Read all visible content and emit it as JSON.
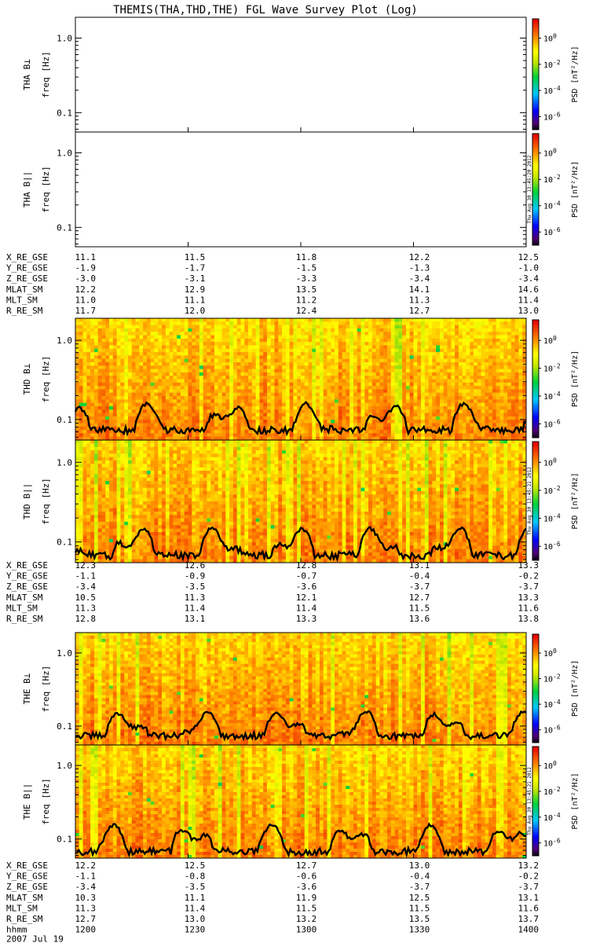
{
  "chart_data": {
    "type": "heatmap",
    "title": "THEMIS(THA,THD,THE) FGL Wave Survey Plot (Log)",
    "freq_axis_label": "freq [Hz]",
    "yscale": "log",
    "ylim_hz": [
      0.055,
      1.9
    ],
    "yticks": [
      {
        "value": 1.0,
        "label": "1.0"
      },
      {
        "value": 0.1,
        "label": "0.1"
      }
    ],
    "colorbar": {
      "label": "PSD [nT²/Hz]",
      "scale": "log",
      "range": [
        1e-07,
        30
      ],
      "ticks": [
        {
          "value": 1,
          "base": "10",
          "exp": "0"
        },
        {
          "value": 0.01,
          "base": "10",
          "exp": "-2"
        },
        {
          "value": 0.0001,
          "base": "10",
          "exp": "-4"
        },
        {
          "value": 1e-06,
          "base": "10",
          "exp": "-6"
        }
      ]
    },
    "stamp": "Thu Aug 30 13:45:21 2012",
    "stamp_first": "Thu Aug 30 13:45:20 2012",
    "time_axis": {
      "label_hhmm": "hhmm",
      "ticks": [
        "1200",
        "1230",
        "1300",
        "1330",
        "1400"
      ],
      "date": "2007 Jul 19"
    },
    "panels": [
      {
        "label": "THA B⊥",
        "probe": "THA",
        "has_data": false,
        "noise_level": 0.12
      },
      {
        "label": "THA B||",
        "probe": "THA",
        "has_data": false,
        "noise_level": 0.12
      },
      {
        "label": "THD B⊥",
        "probe": "THD",
        "has_data": true,
        "noise_level": 0.12
      },
      {
        "label": "THD B||",
        "probe": "THD",
        "has_data": true,
        "noise_level": 0.11
      },
      {
        "label": "THE B⊥",
        "probe": "THE",
        "has_data": true,
        "noise_level": 0.12
      },
      {
        "label": "THE B||",
        "probe": "THE",
        "has_data": true,
        "noise_level": 0.11
      }
    ],
    "ephemeris": [
      {
        "probe": "THA",
        "rows": [
          {
            "name": "X_RE_GSE",
            "values": [
              "11.1",
              "11.5",
              "11.8",
              "12.2",
              "12.5"
            ]
          },
          {
            "name": "Y_RE_GSE",
            "values": [
              "-1.9",
              "-1.7",
              "-1.5",
              "-1.3",
              "-1.0"
            ]
          },
          {
            "name": "Z_RE_GSE",
            "values": [
              "-3.0",
              "-3.1",
              "-3.3",
              "-3.4",
              "-3.4"
            ]
          },
          {
            "name": "MLAT_SM",
            "values": [
              "12.2",
              "12.9",
              "13.5",
              "14.1",
              "14.6"
            ]
          },
          {
            "name": "MLT_SM",
            "values": [
              "11.0",
              "11.1",
              "11.2",
              "11.3",
              "11.4"
            ]
          },
          {
            "name": "R_RE_SM",
            "values": [
              "11.7",
              "12.0",
              "12.4",
              "12.7",
              "13.0"
            ]
          }
        ]
      },
      {
        "probe": "THD",
        "rows": [
          {
            "name": "X_RE_GSE",
            "values": [
              "12.3",
              "12.6",
              "12.8",
              "13.1",
              "13.3"
            ]
          },
          {
            "name": "Y_RE_GSE",
            "values": [
              "-1.1",
              "-0.9",
              "-0.7",
              "-0.4",
              "-0.2"
            ]
          },
          {
            "name": "Z_RE_GSE",
            "values": [
              "-3.4",
              "-3.5",
              "-3.6",
              "-3.7",
              "-3.7"
            ]
          },
          {
            "name": "MLAT_SM",
            "values": [
              "10.5",
              "11.3",
              "12.1",
              "12.7",
              "13.3"
            ]
          },
          {
            "name": "MLT_SM",
            "values": [
              "11.3",
              "11.4",
              "11.4",
              "11.5",
              "11.6"
            ]
          },
          {
            "name": "R_RE_SM",
            "values": [
              "12.8",
              "13.1",
              "13.3",
              "13.6",
              "13.8"
            ]
          }
        ]
      },
      {
        "probe": "THE",
        "rows": [
          {
            "name": "X_RE_GSE",
            "values": [
              "12.2",
              "12.5",
              "12.7",
              "13.0",
              "13.2"
            ]
          },
          {
            "name": "Y_RE_GSE",
            "values": [
              "-1.1",
              "-0.8",
              "-0.6",
              "-0.4",
              "-0.2"
            ]
          },
          {
            "name": "Z_RE_GSE",
            "values": [
              "-3.4",
              "-3.5",
              "-3.6",
              "-3.7",
              "-3.7"
            ]
          },
          {
            "name": "MLAT_SM",
            "values": [
              "10.3",
              "11.1",
              "11.9",
              "12.5",
              "13.1"
            ]
          },
          {
            "name": "MLT_SM",
            "values": [
              "11.3",
              "11.4",
              "11.5",
              "11.5",
              "11.6"
            ]
          },
          {
            "name": "R_RE_SM",
            "values": [
              "12.7",
              "13.0",
              "13.2",
              "13.5",
              "13.7"
            ]
          }
        ]
      }
    ]
  },
  "colors": {
    "background": "#ffffff",
    "axis": "#000000",
    "trace": "#000000"
  }
}
